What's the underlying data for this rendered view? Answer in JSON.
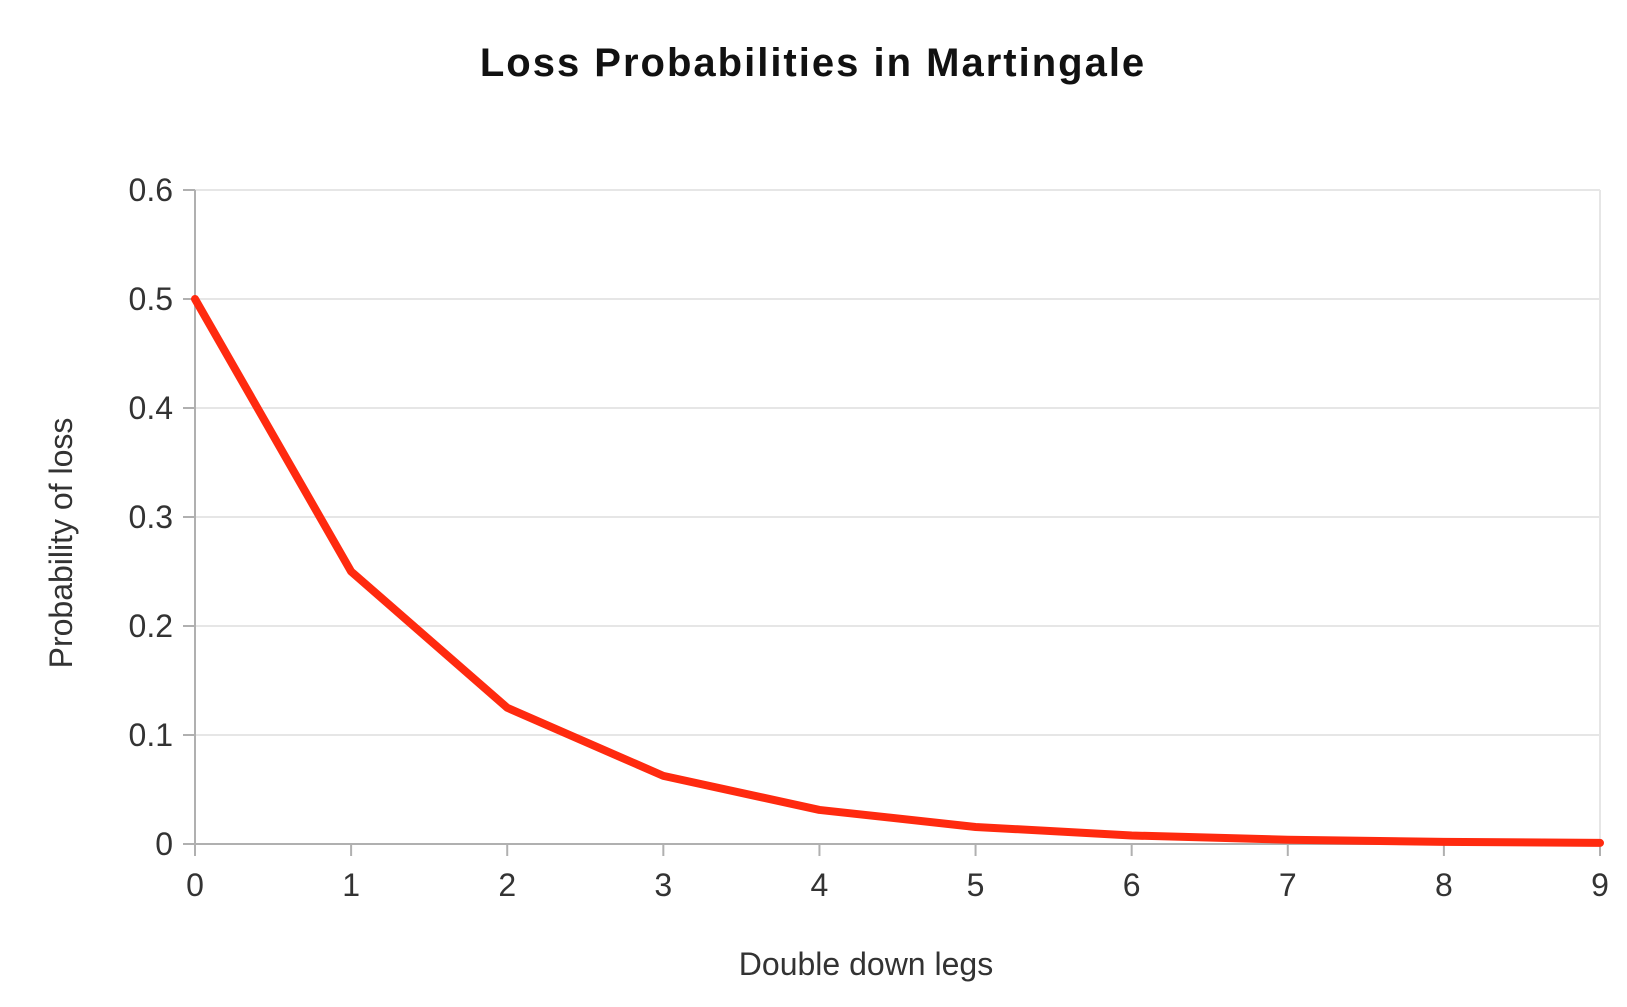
{
  "chart_data": {
    "type": "line",
    "title": "Loss Probabilities in Martingale",
    "xlabel": "Double down legs",
    "ylabel": "Probability of loss",
    "x": [
      0,
      1,
      2,
      3,
      4,
      5,
      6,
      7,
      8,
      9
    ],
    "x_ticks": [
      "0",
      "1",
      "2",
      "3",
      "4",
      "5",
      "6",
      "7",
      "8",
      "9"
    ],
    "y_ticks": [
      "0",
      "0.1",
      "0.2",
      "0.3",
      "0.4",
      "0.5",
      "0.6"
    ],
    "xlim": [
      0,
      9
    ],
    "ylim": [
      0,
      0.6
    ],
    "grid": true,
    "legend": "none",
    "series": [
      {
        "color": "#ff2a0f",
        "values": [
          0.5,
          0.25,
          0.125,
          0.0625,
          0.03125,
          0.015625,
          0.0078125,
          0.00390625,
          0.001953125,
          0.0009765625
        ]
      }
    ]
  }
}
